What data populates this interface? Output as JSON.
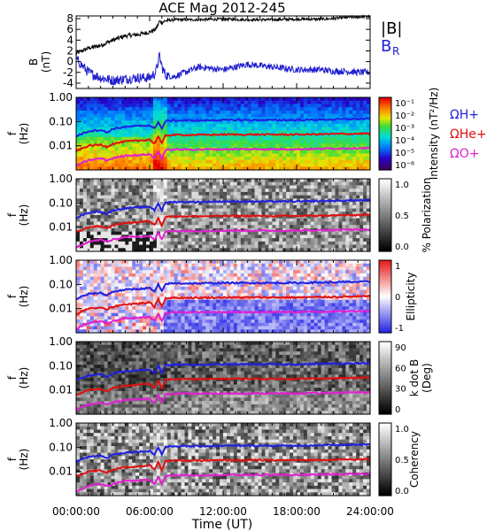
{
  "title": "ACE Mag 2012-245",
  "colors": {
    "B_total": "#000000",
    "B_R": "#1f1fd0",
    "H_plus": "#1f1fe0",
    "He_plus": "#e01010",
    "O_plus": "#e020d0"
  },
  "chart_data": [
    {
      "type": "line",
      "panel": "B",
      "ylabel": "B (nT)",
      "ylim": [
        -5,
        8.5
      ],
      "y_ticks": [
        "8",
        "6",
        "4",
        "2",
        "0",
        "-2",
        "-4"
      ],
      "legend": [
        "|B|",
        "B_R"
      ],
      "legend_label_B": "|B|",
      "legend_label_BR": "B",
      "legend_label_BR_sub": "R",
      "series": [
        {
          "name": "|B|",
          "x": [
            0,
            1,
            2,
            3,
            4,
            5,
            6,
            6.5,
            6.8,
            7,
            7.3,
            8,
            10,
            12,
            14,
            16,
            18,
            20,
            21,
            22,
            23,
            24
          ],
          "values": [
            1.5,
            2.5,
            3,
            4,
            4.8,
            5,
            5.5,
            6,
            7.5,
            7.3,
            7.6,
            7.8,
            7.8,
            7.9,
            7.8,
            7.8,
            7.9,
            7.9,
            8,
            8.2,
            8.3,
            8.4
          ]
        },
        {
          "name": "B_R",
          "x": [
            0,
            1,
            2,
            3,
            4,
            5,
            6,
            6.5,
            6.8,
            7,
            7.3,
            8,
            10,
            12,
            14,
            16,
            18,
            20,
            21,
            22,
            23,
            24
          ],
          "values": [
            0.5,
            -2,
            -3,
            -3.5,
            -3.2,
            -3,
            -3,
            -2,
            1,
            -1,
            -2.5,
            -2.8,
            -1,
            -1.5,
            -0.5,
            -1,
            -1.5,
            -1.5,
            -1.8,
            -1.8,
            -2,
            -2
          ]
        }
      ]
    },
    {
      "type": "heatmap",
      "panel": "Intensity",
      "ylabel": "f (Hz)",
      "colorbar_label": "Intensity (nT²/Hz)",
      "colorbar_ticks": [
        "10⁻¹",
        "10⁻²",
        "10⁻³",
        "10⁻⁴",
        "10⁻⁵",
        "10⁻⁶"
      ],
      "gyro_labels": [
        "ΩH+",
        "ΩHe+",
        "ΩO+"
      ]
    },
    {
      "type": "heatmap",
      "panel": "Polarization",
      "ylabel": "f (Hz)",
      "colorbar_label": "% Polarization",
      "colorbar_ticks": [
        "1.0",
        "0.5",
        "0.0"
      ]
    },
    {
      "type": "heatmap",
      "panel": "Ellipticity",
      "ylabel": "f (Hz)",
      "colorbar_label": "Ellipticity",
      "colorbar_ticks": [
        "1",
        "0",
        "-1"
      ]
    },
    {
      "type": "heatmap",
      "panel": "kdotB",
      "ylabel": "f (Hz)",
      "colorbar_label_line1": "k dot B",
      "colorbar_label_line2": "(Deg)",
      "colorbar_ticks": [
        "90",
        "60",
        "30",
        "0"
      ]
    },
    {
      "type": "heatmap",
      "panel": "Coherency",
      "ylabel": "f (Hz)",
      "colorbar_label": "Coherency",
      "colorbar_ticks": [
        "1.0",
        "0.5",
        "0.0"
      ]
    }
  ],
  "freq_axis": {
    "ticks": [
      "1.00",
      "0.10",
      "0.01"
    ],
    "ylabel_f": "f",
    "ylabel_unit": "(Hz)"
  },
  "gyrofrequency_lines": {
    "x": [
      0,
      1,
      2,
      2.5,
      3,
      4,
      5,
      6,
      6.4,
      6.7,
      7,
      7.3,
      8,
      10,
      12,
      14,
      16,
      18,
      20,
      22,
      24
    ],
    "H_plus": [
      0.025,
      0.04,
      0.045,
      0.035,
      0.05,
      0.06,
      0.065,
      0.07,
      0.05,
      0.1,
      0.05,
      0.105,
      0.11,
      0.11,
      0.115,
      0.115,
      0.115,
      0.115,
      0.12,
      0.125,
      0.13
    ],
    "He_plus": [
      0.006,
      0.01,
      0.011,
      0.009,
      0.012,
      0.015,
      0.016,
      0.018,
      0.012,
      0.025,
      0.012,
      0.027,
      0.028,
      0.028,
      0.029,
      0.029,
      0.029,
      0.029,
      0.03,
      0.031,
      0.032
    ],
    "O_plus": [
      0.0015,
      0.0025,
      0.003,
      0.0025,
      0.003,
      0.004,
      0.004,
      0.0045,
      0.003,
      0.006,
      0.003,
      0.0066,
      0.007,
      0.007,
      0.0072,
      0.0072,
      0.0072,
      0.0072,
      0.0075,
      0.0078,
      0.008
    ]
  },
  "x_axis": {
    "label": "Time (UT)",
    "tick_labels": [
      "00:00:00",
      "06:00:00",
      "12:00:00",
      "18:00:00",
      "24:00:00"
    ],
    "range_hours": [
      0,
      24
    ]
  }
}
